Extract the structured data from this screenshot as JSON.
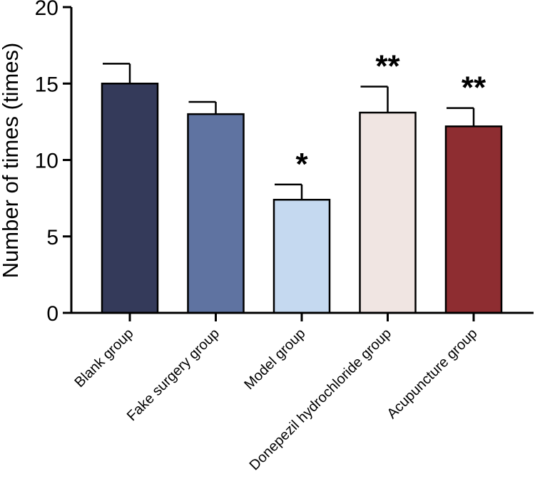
{
  "chart_data": {
    "type": "bar",
    "title": "",
    "xlabel": "",
    "ylabel": "Number of times (times)",
    "ylim": [
      0,
      20
    ],
    "yticks": [
      0,
      5,
      10,
      15,
      20
    ],
    "grid": false,
    "categories": [
      "Blank group",
      "Fake surgery group",
      "Model group",
      "Donepezil hydrochloride group",
      "Acupuncture group"
    ],
    "values": [
      15.0,
      13.0,
      7.4,
      13.1,
      12.2
    ],
    "errors": [
      1.3,
      0.8,
      1.0,
      1.7,
      1.2
    ],
    "significance": [
      "",
      "",
      "*",
      "**",
      "**"
    ],
    "colors": [
      "#343a5a",
      "#5f73a1",
      "#c5d9f0",
      "#f0e5e2",
      "#8e2d31"
    ]
  }
}
